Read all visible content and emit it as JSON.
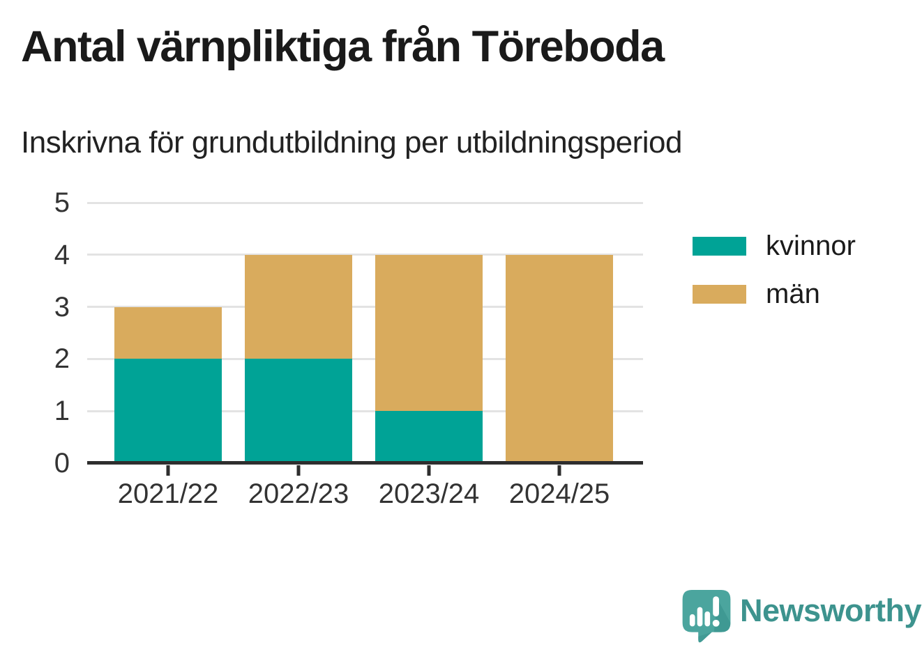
{
  "header": {
    "title": "Antal värnpliktiga från Töreboda",
    "subtitle": "Inskrivna för grundutbildning per utbildningsperiod"
  },
  "chart_data": {
    "type": "bar",
    "stacked": true,
    "title": "Antal värnpliktiga från Töreboda",
    "subtitle": "Inskrivna för grundutbildning per utbildningsperiod",
    "categories": [
      "2021/22",
      "2022/23",
      "2023/24",
      "2024/25"
    ],
    "series": [
      {
        "name": "kvinnor",
        "color": "#00a396",
        "values": [
          2,
          2,
          1,
          0
        ]
      },
      {
        "name": "män",
        "color": "#d9ab5d",
        "values": [
          1,
          2,
          3,
          4
        ]
      }
    ],
    "totals": [
      3,
      4,
      4,
      4
    ],
    "xlabel": "",
    "ylabel": "",
    "ylim": [
      0,
      5
    ],
    "yticks": [
      0,
      1,
      2,
      3,
      4,
      5
    ],
    "grid": true,
    "legend_position": "right"
  },
  "footer": {
    "brand": "Newsworthy",
    "logo_icon": "newsworthy-speech-bubble-bar-chart-icon"
  },
  "colors": {
    "kvinnor": "#00a396",
    "man": "#d9ab5d",
    "axis": "#2e2e2e",
    "gridline": "#e3e3e3",
    "text": "#333333",
    "title_text": "#1a1a1a",
    "brand_teal": "#3d938e",
    "brand_icon_teal": "#4ba59e",
    "brand_icon_shadow": "#37908a",
    "background": "#ffffff"
  }
}
